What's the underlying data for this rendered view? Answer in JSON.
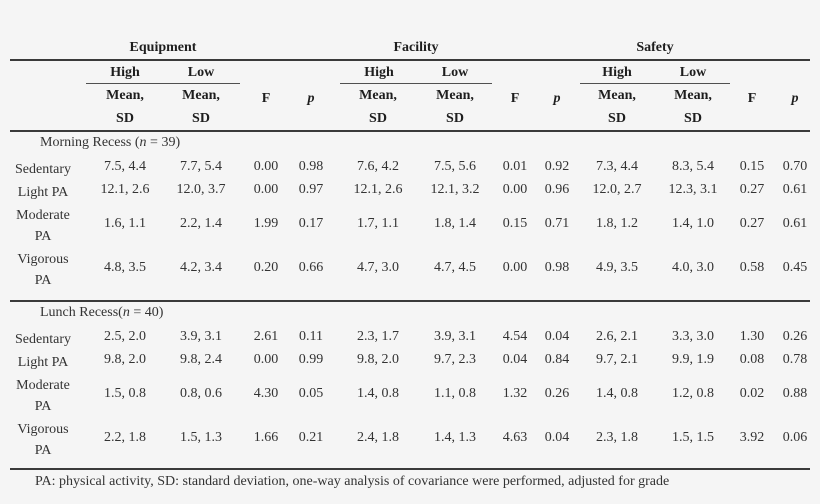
{
  "table": {
    "groups": [
      {
        "label": "Equipment",
        "high": "High",
        "low": "Low"
      },
      {
        "label": "Facility",
        "high": "High",
        "low": "Low"
      },
      {
        "label": "Safety",
        "high": "High",
        "low": "Low"
      }
    ],
    "subheaders": {
      "mean_sd_line1": "Mean,",
      "mean_sd_line2": "SD",
      "f": "F",
      "p": "p"
    },
    "sections": [
      {
        "title_prefix": "Morning Recess (",
        "title_n": "n",
        "title_suffix": " = 39)",
        "rows": [
          {
            "label_line1": "Sedentary",
            "label_line2": "",
            "cells": [
              "7.5, 4.4",
              "7.7, 5.4",
              "0.00",
              "0.98",
              "7.6, 4.2",
              "7.5, 5.6",
              "0.01",
              "0.92",
              "7.3, 4.4",
              "8.3, 5.4",
              "0.15",
              "0.70"
            ]
          },
          {
            "label_line1": "Light PA",
            "label_line2": "",
            "cells": [
              "12.1, 2.6",
              "12.0, 3.7",
              "0.00",
              "0.97",
              "12.1, 2.6",
              "12.1, 3.2",
              "0.00",
              "0.96",
              "12.0, 2.7",
              "12.3, 3.1",
              "0.27",
              "0.61"
            ]
          },
          {
            "label_line1": "Moderate",
            "label_line2": "PA",
            "cells": [
              "1.6, 1.1",
              "2.2, 1.4",
              "1.99",
              "0.17",
              "1.7, 1.1",
              "1.8, 1.4",
              "0.15",
              "0.71",
              "1.8, 1.2",
              "1.4, 1.0",
              "0.27",
              "0.61"
            ]
          },
          {
            "label_line1": "Vigorous",
            "label_line2": "PA",
            "cells": [
              "4.8, 3.5",
              "4.2, 3.4",
              "0.20",
              "0.66",
              "4.7, 3.0",
              "4.7, 4.5",
              "0.00",
              "0.98",
              "4.9, 3.5",
              "4.0, 3.0",
              "0.58",
              "0.45"
            ]
          }
        ]
      },
      {
        "title_prefix": "Lunch Recess(",
        "title_n": "n",
        "title_suffix": " = 40)",
        "rows": [
          {
            "label_line1": "Sedentary",
            "label_line2": "",
            "cells": [
              "2.5, 2.0",
              "3.9, 3.1",
              "2.61",
              "0.11",
              "2.3, 1.7",
              "3.9, 3.1",
              "4.54",
              "0.04",
              "2.6, 2.1",
              "3.3, 3.0",
              "1.30",
              "0.26"
            ]
          },
          {
            "label_line1": "Light PA",
            "label_line2": "",
            "cells": [
              "9.8, 2.0",
              "9.8, 2.4",
              "0.00",
              "0.99",
              "9.8, 2.0",
              "9.7, 2.3",
              "0.04",
              "0.84",
              "9.7, 2.1",
              "9.9, 1.9",
              "0.08",
              "0.78"
            ]
          },
          {
            "label_line1": "Moderate",
            "label_line2": "PA",
            "cells": [
              "1.5, 0.8",
              "0.8, 0.6",
              "4.30",
              "0.05",
              "1.4, 0.8",
              "1.1, 0.8",
              "1.32",
              "0.26",
              "1.4, 0.8",
              "1.2, 0.8",
              "0.02",
              "0.88"
            ]
          },
          {
            "label_line1": "Vigorous",
            "label_line2": "PA",
            "cells": [
              "2.2, 1.8",
              "1.5, 1.3",
              "1.66",
              "0.21",
              "2.4, 1.8",
              "1.4, 1.3",
              "4.63",
              "0.04",
              "2.3, 1.8",
              "1.5, 1.5",
              "3.92",
              "0.06"
            ]
          }
        ]
      }
    ],
    "footnote": "PA: physical activity, SD: standard deviation, one-way analysis of covariance were performed, adjusted for grade"
  }
}
